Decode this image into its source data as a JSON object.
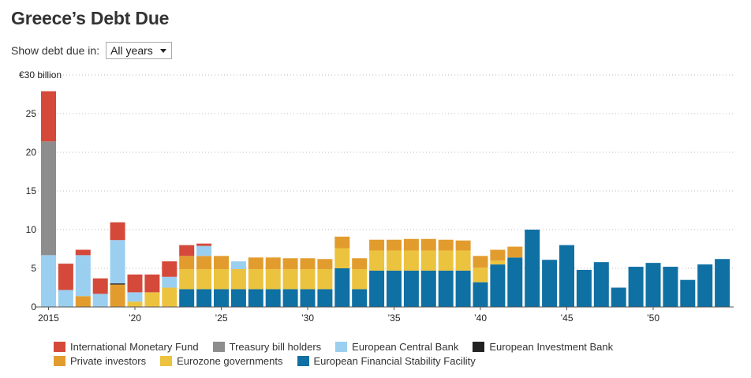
{
  "title": "Greece’s Debt Due",
  "filter": {
    "label": "Show debt due in:",
    "selected": "All years"
  },
  "chart_data": {
    "type": "bar",
    "stacked": true,
    "title": "Greece’s Debt Due",
    "ylabel": "€30 billion",
    "ylim": [
      0,
      30
    ],
    "yticks": [
      0,
      5,
      10,
      15,
      20,
      25,
      30
    ],
    "ytick_labels": [
      "0",
      "5",
      "10",
      "15",
      "20",
      "25",
      "€30 billion"
    ],
    "x": [
      2015,
      2016,
      2017,
      2018,
      2019,
      2020,
      2021,
      2022,
      2023,
      2024,
      2025,
      2026,
      2027,
      2028,
      2029,
      2030,
      2031,
      2032,
      2033,
      2034,
      2035,
      2036,
      2037,
      2038,
      2039,
      2040,
      2041,
      2042,
      2043,
      2044,
      2045,
      2046,
      2047,
      2048,
      2049,
      2050,
      2051,
      2052,
      2053,
      2054
    ],
    "xticks": [
      2015,
      2020,
      2025,
      2030,
      2035,
      2040,
      2045,
      2050
    ],
    "xtick_labels": [
      "2015",
      "’20",
      "’25",
      "’30",
      "’35",
      "’40",
      "’45",
      "’50"
    ],
    "series": [
      {
        "name": "European Financial Stability Facility",
        "color": "#0f70a3",
        "values": [
          0,
          0,
          0,
          0,
          0,
          0,
          0,
          0,
          2.3,
          2.3,
          2.3,
          2.3,
          2.3,
          2.3,
          2.3,
          2.3,
          2.3,
          5.0,
          2.3,
          4.7,
          4.7,
          4.7,
          4.7,
          4.7,
          4.7,
          3.2,
          5.5,
          6.4,
          10.0,
          6.1,
          8.0,
          4.8,
          5.8,
          2.5,
          5.2,
          5.7,
          5.2,
          3.5,
          5.5,
          6.2
        ]
      },
      {
        "name": "Eurozone governments",
        "color": "#ecc33f",
        "values": [
          0,
          0,
          0,
          0,
          0,
          0.7,
          1.9,
          2.5,
          2.6,
          2.6,
          2.6,
          2.6,
          2.6,
          2.6,
          2.6,
          2.6,
          2.6,
          2.6,
          2.6,
          2.6,
          2.6,
          2.6,
          2.6,
          2.6,
          2.6,
          1.9,
          0.5,
          0,
          0,
          0,
          0,
          0,
          0,
          0,
          0,
          0,
          0,
          0,
          0,
          0
        ]
      },
      {
        "name": "Private investors",
        "color": "#e29c2e",
        "values": [
          0,
          0,
          1.4,
          0,
          2.9,
          0,
          0,
          0,
          1.7,
          1.7,
          1.7,
          0,
          1.5,
          1.5,
          1.4,
          1.4,
          1.3,
          1.5,
          1.4,
          1.4,
          1.4,
          1.5,
          1.5,
          1.4,
          1.3,
          1.5,
          1.4,
          1.4,
          0,
          0,
          0,
          0,
          0,
          0,
          0,
          0,
          0,
          0,
          0,
          0
        ]
      },
      {
        "name": "European Investment Bank",
        "color": "#222222",
        "values": [
          0,
          0,
          0,
          0,
          0.15,
          0,
          0,
          0,
          0,
          0,
          0,
          0,
          0,
          0,
          0,
          0,
          0,
          0,
          0,
          0,
          0,
          0,
          0,
          0,
          0,
          0,
          0,
          0,
          0,
          0,
          0,
          0,
          0,
          0,
          0,
          0,
          0,
          0,
          0,
          0
        ]
      },
      {
        "name": "European Central Bank",
        "color": "#9bcff0",
        "values": [
          6.7,
          2.2,
          5.3,
          1.7,
          5.6,
          1.2,
          0,
          1.4,
          0,
          1.3,
          0,
          1.0,
          0,
          0,
          0,
          0,
          0,
          0,
          0,
          0,
          0,
          0,
          0,
          0,
          0,
          0,
          0,
          0,
          0,
          0,
          0,
          0,
          0,
          0,
          0,
          0,
          0,
          0,
          0,
          0
        ]
      },
      {
        "name": "Treasury bill holders",
        "color": "#8d8d8d",
        "values": [
          14.7,
          0,
          0,
          0,
          0,
          0,
          0,
          0,
          0,
          0,
          0,
          0,
          0,
          0,
          0,
          0,
          0,
          0,
          0,
          0,
          0,
          0,
          0,
          0,
          0,
          0,
          0,
          0,
          0,
          0,
          0,
          0,
          0,
          0,
          0,
          0,
          0,
          0,
          0,
          0
        ]
      },
      {
        "name": "International Monetary Fund",
        "color": "#d4493a",
        "values": [
          6.5,
          3.4,
          0.7,
          2.0,
          2.3,
          2.3,
          2.3,
          2.0,
          1.4,
          0.3,
          0,
          0,
          0,
          0,
          0,
          0,
          0,
          0,
          0,
          0,
          0,
          0,
          0,
          0,
          0,
          0,
          0,
          0,
          0,
          0,
          0,
          0,
          0,
          0,
          0,
          0,
          0,
          0,
          0,
          0
        ]
      }
    ],
    "legend": [
      [
        "International Monetary Fund",
        "Treasury bill holders",
        "European Central Bank",
        "European Investment Bank"
      ],
      [
        "Private investors",
        "Eurozone governments",
        "European Financial Stability Facility"
      ]
    ]
  }
}
